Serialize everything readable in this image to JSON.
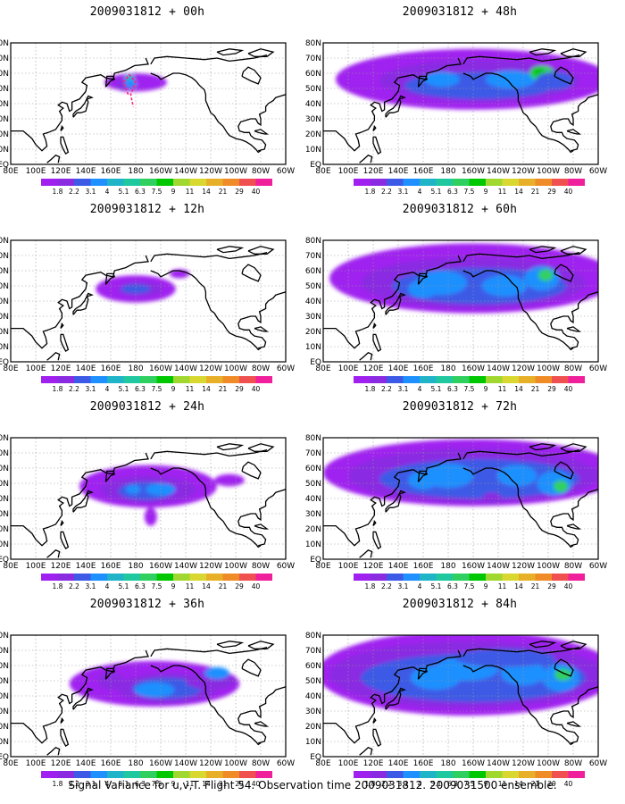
{
  "caption": "Signal Variance for u,v,T. Flight 54. Observation time 2009031812. 2009031500 ensemble.",
  "lat_labels": [
    "80N",
    "70N",
    "60N",
    "50N",
    "40N",
    "30N",
    "20N",
    "10N",
    "EQ"
  ],
  "lon_labels": [
    "80E",
    "100E",
    "120E",
    "140E",
    "160E",
    "180",
    "160W",
    "140W",
    "120W",
    "100W",
    "80W",
    "60W"
  ],
  "colorbar": {
    "levels": [
      "1.8",
      "2.2",
      "3.1",
      "4",
      "5.1",
      "6.3",
      "7.5",
      "9",
      "11",
      "14",
      "21",
      "29",
      "40"
    ],
    "colors": [
      "#a020f0",
      "#8a2be2",
      "#3c5ae6",
      "#1e90ff",
      "#20b4c8",
      "#20c8a0",
      "#30d060",
      "#00c800",
      "#a0d830",
      "#d8d830",
      "#e8b028",
      "#f08c28",
      "#f05050",
      "#f0209c"
    ]
  },
  "panels": [
    {
      "title": "2009031812 + 00h",
      "intensity": 0
    },
    {
      "title": "2009031812 + 48h",
      "intensity": 4
    },
    {
      "title": "2009031812 + 12h",
      "intensity": 1
    },
    {
      "title": "2009031812 + 60h",
      "intensity": 5
    },
    {
      "title": "2009031812 + 24h",
      "intensity": 2
    },
    {
      "title": "2009031812 + 72h",
      "intensity": 6
    },
    {
      "title": "2009031812 + 36h",
      "intensity": 3
    },
    {
      "title": "2009031812 + 84h",
      "intensity": 7
    }
  ]
}
